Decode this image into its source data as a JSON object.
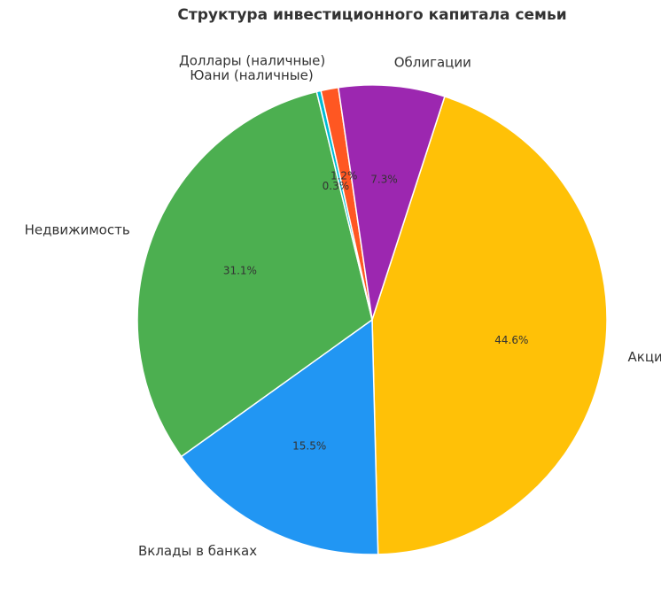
{
  "chart_data": {
    "type": "pie",
    "title": "Структура инвестиционного капитала семьи",
    "categories": [
      "Акции",
      "Вклады в банках",
      "Недвижимость",
      "Юани (наличные)",
      "Доллары (наличные)",
      "Облигации"
    ],
    "values": [
      44.6,
      15.5,
      31.1,
      0.3,
      1.2,
      7.3
    ],
    "value_labels": [
      "44.6%",
      "15.5%",
      "31.1%",
      "0.3%",
      "1.2%",
      "7.3%"
    ],
    "colors": [
      "#FFC107",
      "#2196F3",
      "#4CAF50",
      "#00BCD4",
      "#FF5722",
      "#9C27B0"
    ],
    "start_angle_deg": 72,
    "direction": "clockwise",
    "legend": "none"
  }
}
